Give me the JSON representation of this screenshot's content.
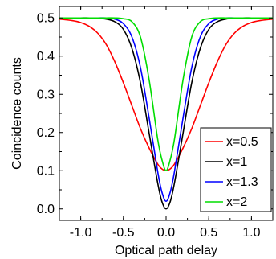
{
  "chart_data": {
    "type": "line",
    "title": "",
    "xlabel": "Optical path delay",
    "ylabel": "Coincidence counts",
    "xlim": [
      -1.25,
      1.25
    ],
    "ylim": [
      -0.03,
      0.53
    ],
    "xticks": [
      -1.0,
      -0.5,
      0.0,
      0.5,
      1.0
    ],
    "xtick_labels": [
      "-1.0",
      "-0.5",
      "0.0",
      "0.5",
      "1.0"
    ],
    "yticks": [
      0.0,
      0.1,
      0.2,
      0.3,
      0.4,
      0.5
    ],
    "ytick_labels": [
      "0.0",
      "0.1",
      "0.2",
      "0.3",
      "0.4",
      "0.5"
    ],
    "grid": false,
    "legend_position": "bottom-right",
    "x": [
      -1.25,
      -1.1,
      -1.0,
      -0.9,
      -0.8,
      -0.7,
      -0.6,
      -0.5,
      -0.4,
      -0.3,
      -0.2,
      -0.1,
      -0.05,
      0.0,
      0.05,
      0.1,
      0.2,
      0.3,
      0.4,
      0.5,
      0.6,
      0.7,
      0.8,
      0.9,
      1.0,
      1.1,
      1.25
    ],
    "series": [
      {
        "name": "x=0.5",
        "color": "#ff0000",
        "values": [
          0.497,
          0.493,
          0.488,
          0.478,
          0.46,
          0.43,
          0.385,
          0.33,
          0.27,
          0.21,
          0.16,
          0.118,
          0.105,
          0.1,
          0.105,
          0.118,
          0.16,
          0.21,
          0.27,
          0.33,
          0.385,
          0.43,
          0.46,
          0.478,
          0.488,
          0.493,
          0.497
        ]
      },
      {
        "name": "x=1",
        "color": "#000000",
        "values": [
          0.5,
          0.5,
          0.5,
          0.5,
          0.499,
          0.497,
          0.49,
          0.47,
          0.42,
          0.33,
          0.2,
          0.07,
          0.02,
          0.0,
          0.02,
          0.07,
          0.2,
          0.33,
          0.42,
          0.47,
          0.49,
          0.497,
          0.499,
          0.5,
          0.5,
          0.5,
          0.5
        ]
      },
      {
        "name": "x=1.3",
        "color": "#0000ff",
        "values": [
          0.5,
          0.5,
          0.5,
          0.5,
          0.5,
          0.5,
          0.497,
          0.485,
          0.45,
          0.37,
          0.24,
          0.1,
          0.045,
          0.02,
          0.045,
          0.1,
          0.24,
          0.37,
          0.45,
          0.485,
          0.497,
          0.5,
          0.5,
          0.5,
          0.5,
          0.5,
          0.5
        ]
      },
      {
        "name": "x=2",
        "color": "#00dd00",
        "values": [
          0.5,
          0.5,
          0.5,
          0.5,
          0.5,
          0.5,
          0.5,
          0.498,
          0.49,
          0.45,
          0.34,
          0.185,
          0.13,
          0.1,
          0.13,
          0.185,
          0.34,
          0.45,
          0.49,
          0.498,
          0.5,
          0.5,
          0.5,
          0.5,
          0.5,
          0.5,
          0.5
        ]
      }
    ]
  }
}
